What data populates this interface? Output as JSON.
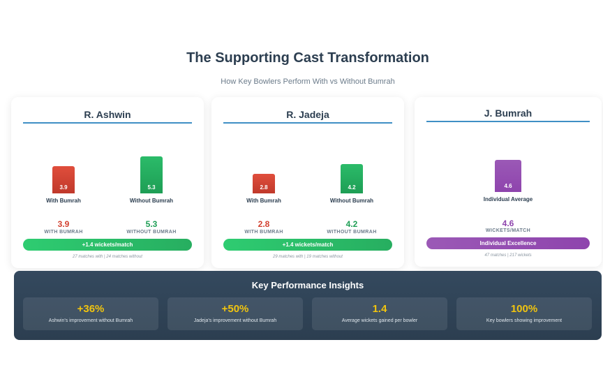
{
  "header": {
    "title": "The Supporting Cast Transformation",
    "subtitle": "How Key Bowlers Perform With vs Without Bumrah"
  },
  "colors": {
    "with": "#c0392b",
    "without": "#27ae60",
    "individual": "#8e44ad",
    "panel": "#2c3e50",
    "highlight": "#f1c40f"
  },
  "chart_data": [
    {
      "type": "bar",
      "title": "R. Ashwin",
      "categories": [
        "With Bumrah",
        "Without Bumrah"
      ],
      "values": [
        3.9,
        5.3
      ],
      "ylabel": "wickets/match"
    },
    {
      "type": "bar",
      "title": "R. Jadeja",
      "categories": [
        "With Bumrah",
        "Without Bumrah"
      ],
      "values": [
        2.8,
        4.2
      ],
      "ylabel": "wickets/match"
    },
    {
      "type": "bar",
      "title": "J. Bumrah",
      "categories": [
        "Individual Average"
      ],
      "values": [
        4.6
      ],
      "ylabel": "wickets/match"
    }
  ],
  "cards": [
    {
      "name": "R. Ashwin",
      "bar1_value": "3.9",
      "bar1_label": "With Bumrah",
      "bar2_value": "5.3",
      "bar2_label": "Without Bumrah",
      "stat1_value": "3.9",
      "stat1_label": "WITH BUMRAH",
      "stat2_value": "5.3",
      "stat2_label": "WITHOUT BUMRAH",
      "pill": "+1.4 wickets/match",
      "footnote": "27 matches with | 24 matches without"
    },
    {
      "name": "R. Jadeja",
      "bar1_value": "2.8",
      "bar1_label": "With Bumrah",
      "bar2_value": "4.2",
      "bar2_label": "Without Bumrah",
      "stat1_value": "2.8",
      "stat1_label": "WITH BUMRAH",
      "stat2_value": "4.2",
      "stat2_label": "WITHOUT BUMRAH",
      "pill": "+1.4 wickets/match",
      "footnote": "29 matches with | 19 matches without"
    },
    {
      "name": "J. Bumrah",
      "bar1_value": "4.6",
      "bar1_label": "Individual Average",
      "stat1_value": "4.6",
      "stat1_label": "WICKETS/MATCH",
      "pill": "Individual Excellence",
      "footnote": "47 matches | 217 wickets"
    }
  ],
  "insights": {
    "title": "Key Performance Insights",
    "items": [
      {
        "value": "+36%",
        "desc": "Ashwin's improvement without Bumrah"
      },
      {
        "value": "+50%",
        "desc": "Jadeja's improvement without Bumrah"
      },
      {
        "value": "1.4",
        "desc": "Average wickets gained per bowler"
      },
      {
        "value": "100%",
        "desc": "Key bowlers showing improvement"
      }
    ]
  }
}
